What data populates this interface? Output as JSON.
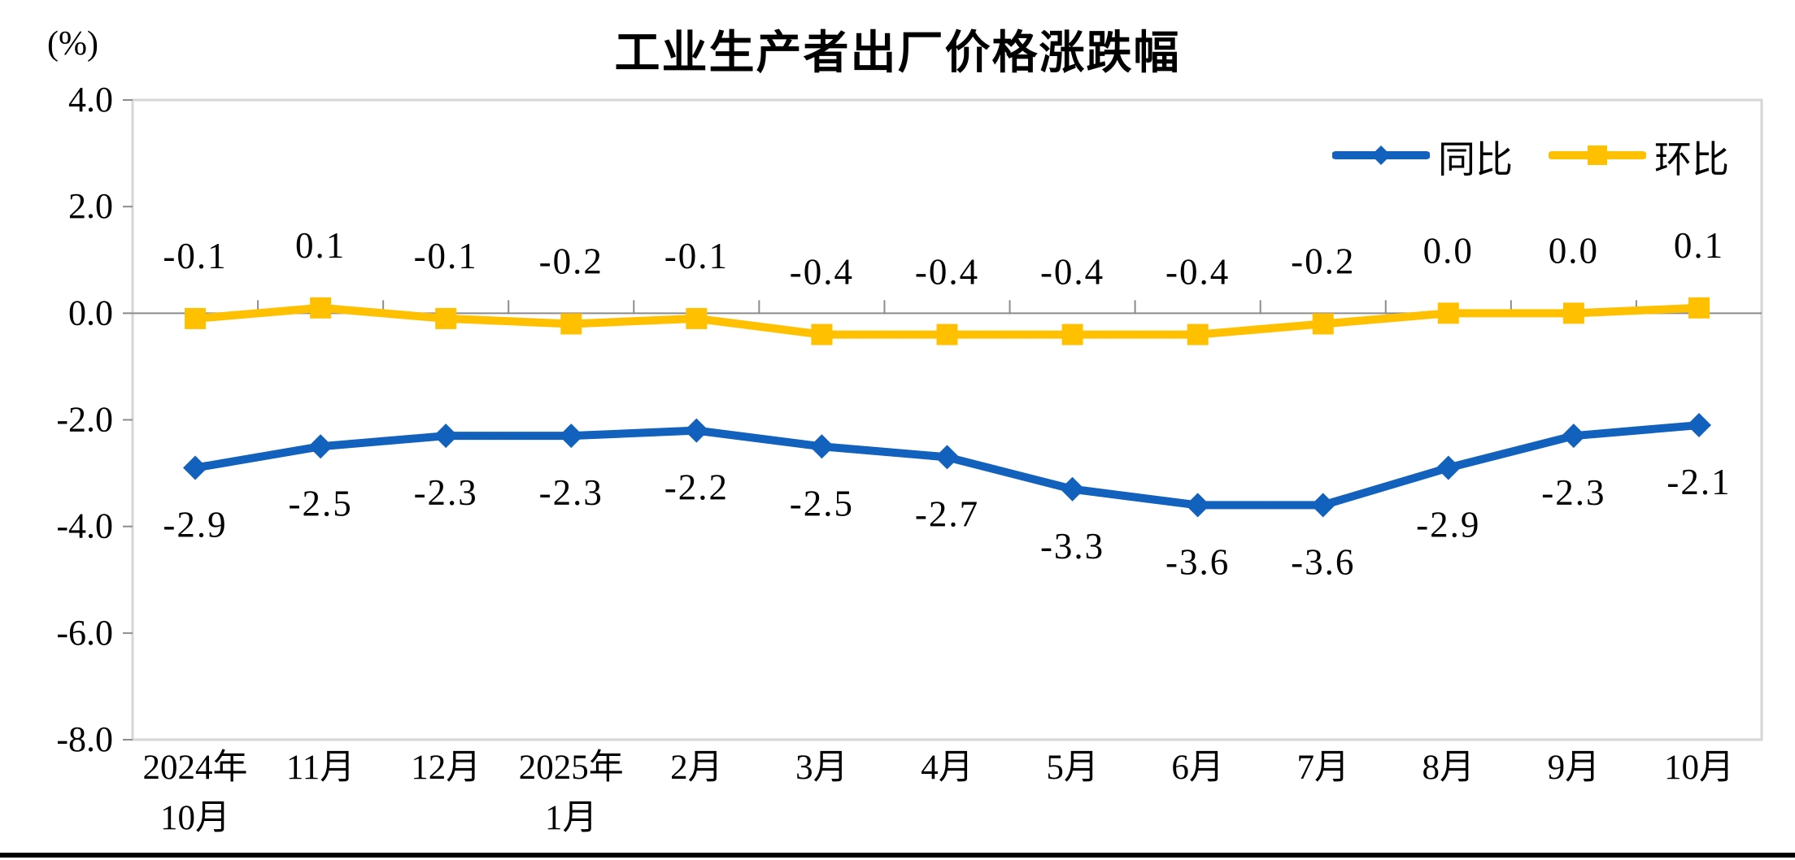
{
  "page": {
    "background": "#ffffff",
    "bottom_bar_color": "#000000"
  },
  "chart_data": {
    "type": "line",
    "title": "工业生产者出厂价格涨跌幅",
    "unit_label": "(%)",
    "categories": [
      [
        "2024年",
        "10月"
      ],
      [
        "11月"
      ],
      [
        "12月"
      ],
      [
        "2025年",
        "1月"
      ],
      [
        "2月"
      ],
      [
        "3月"
      ],
      [
        "4月"
      ],
      [
        "5月"
      ],
      [
        "6月"
      ],
      [
        "7月"
      ],
      [
        "8月"
      ],
      [
        "9月"
      ],
      [
        "10月"
      ]
    ],
    "ylim": [
      -8.0,
      4.0
    ],
    "ytick_step": 2.0,
    "ytick_labels": [
      "4.0",
      "2.0",
      "0.0",
      "-2.0",
      "-4.0",
      "-6.0",
      "-8.0"
    ],
    "grid": false,
    "legend_position": "top-right-inside",
    "series": [
      {
        "name": "同比",
        "color": "#1261BD",
        "marker": "diamond",
        "label_side": "below",
        "values": [
          -2.9,
          -2.5,
          -2.3,
          -2.3,
          -2.2,
          -2.5,
          -2.7,
          -3.3,
          -3.6,
          -3.6,
          -2.9,
          -2.3,
          -2.1
        ],
        "labels": [
          "-2.9",
          "-2.5",
          "-2.3",
          "-2.3",
          "-2.2",
          "-2.5",
          "-2.7",
          "-3.3",
          "-3.6",
          "-3.6",
          "-2.9",
          "-2.3",
          "-2.1"
        ]
      },
      {
        "name": "环比",
        "color": "#FFC000",
        "marker": "square",
        "label_side": "above",
        "values": [
          -0.1,
          0.1,
          -0.1,
          -0.2,
          -0.1,
          -0.4,
          -0.4,
          -0.4,
          -0.4,
          -0.2,
          0.0,
          0.0,
          0.1
        ],
        "labels": [
          "-0.1",
          "0.1",
          "-0.1",
          "-0.2",
          "-0.1",
          "-0.4",
          "-0.4",
          "-0.4",
          "-0.4",
          "-0.2",
          "0.0",
          "0.0",
          "0.1"
        ]
      }
    ],
    "axis_color": "#8c8c8c",
    "border_color": "#d6d6d6",
    "text_color": "#000000"
  }
}
